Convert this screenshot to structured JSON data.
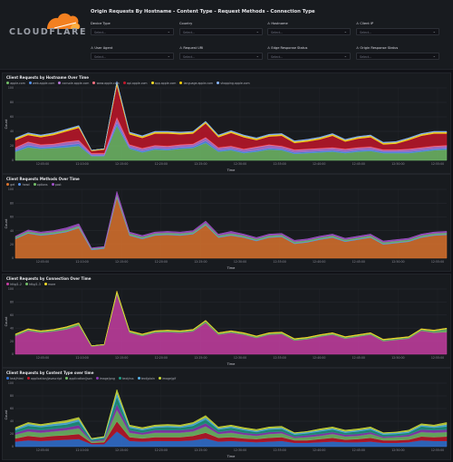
{
  "logo": {
    "text": "CLOUDFLARE",
    "cloud_color": "#f38020"
  },
  "filters": {
    "title": "Origin Requests By Hostname - Content Type - Request Methods - Connection Type",
    "items": [
      {
        "label": "Device Type",
        "placeholder": "Select...",
        "has_alert": false
      },
      {
        "label": "Country",
        "placeholder": "Select...",
        "has_alert": false
      },
      {
        "label": "Hostname",
        "placeholder": "Select...",
        "has_alert": true
      },
      {
        "label": "Client IP",
        "placeholder": "Select...",
        "has_alert": true
      },
      {
        "label": "User Agent",
        "placeholder": "Select...",
        "has_alert": true
      },
      {
        "label": "Request URI",
        "placeholder": "Select...",
        "has_alert": true
      },
      {
        "label": "Edge Response Status",
        "placeholder": "Select...",
        "has_alert": true
      },
      {
        "label": "Origin Response Status",
        "placeholder": "Select...",
        "has_alert": true
      }
    ]
  },
  "chart_data": [
    {
      "type": "area",
      "title": "Client Requests by Hostname Over Time",
      "xlabel": "Time",
      "ylabel": "Count",
      "ylim": [
        0,
        100
      ],
      "yticks": [
        0,
        20,
        40,
        60,
        80,
        100
      ],
      "xticks": [
        "12:05:00",
        "12:10:00",
        "12:15:00",
        "12:20:00",
        "12:25:00",
        "12:30:00",
        "12:35:00",
        "12:40:00",
        "12:45:00",
        "12:50:00",
        "12:55:00"
      ],
      "stacked": true,
      "legend_position": "top-left",
      "series": [
        {
          "name": "apple.com",
          "color": "#73bf69",
          "values": [
            12,
            18,
            16,
            17,
            18,
            20,
            6,
            6,
            48,
            16,
            11,
            15,
            14,
            16,
            17,
            24,
            12,
            14,
            10,
            12,
            15,
            14,
            9,
            10,
            11,
            12,
            10,
            12,
            13,
            10,
            10,
            10,
            12,
            14,
            15
          ]
        },
        {
          "name": "web.apple.com",
          "color": "#5794f2",
          "values": [
            2,
            3,
            2,
            2,
            3,
            3,
            1,
            1,
            4,
            2,
            2,
            2,
            2,
            2,
            2,
            3,
            2,
            2,
            2,
            2,
            2,
            2,
            2,
            2,
            2,
            2,
            2,
            2,
            2,
            2,
            2,
            2,
            2,
            2,
            2
          ]
        },
        {
          "name": "console.apple.com",
          "color": "#b877d9",
          "values": [
            3,
            4,
            3,
            3,
            4,
            4,
            2,
            2,
            6,
            3,
            3,
            3,
            3,
            3,
            3,
            4,
            3,
            3,
            3,
            4,
            4,
            3,
            3,
            3,
            3,
            3,
            3,
            3,
            3,
            2,
            2,
            3,
            3,
            3,
            3
          ]
        },
        {
          "name": "www.apple.com",
          "color": "#ff7383",
          "values": [
            1,
            1,
            1,
            1,
            1,
            1,
            1,
            1,
            2,
            1,
            1,
            1,
            1,
            1,
            1,
            1,
            1,
            1,
            1,
            1,
            1,
            1,
            1,
            1,
            1,
            1,
            1,
            1,
            1,
            1,
            1,
            1,
            1,
            1,
            1
          ]
        },
        {
          "name": "api.apple.com",
          "color": "#c4162a",
          "values": [
            10,
            9,
            10,
            12,
            14,
            17,
            3,
            5,
            44,
            14,
            14,
            16,
            17,
            14,
            14,
            19,
            14,
            18,
            16,
            9,
            11,
            14,
            9,
            10,
            12,
            16,
            10,
            12,
            13,
            7,
            8,
            12,
            16,
            17,
            16
          ]
        },
        {
          "name": "app.apple.com",
          "color": "#fade2a",
          "values": [
            1,
            1,
            1,
            1,
            1,
            1,
            1,
            1,
            2,
            1,
            1,
            1,
            1,
            1,
            1,
            1,
            1,
            1,
            1,
            1,
            1,
            1,
            1,
            1,
            1,
            1,
            1,
            1,
            1,
            1,
            1,
            1,
            1,
            1,
            1
          ]
        },
        {
          "name": "language.apple.com",
          "color": "#f2cc0c",
          "values": [
            1,
            1,
            1,
            1,
            1,
            1,
            0,
            0,
            2,
            1,
            1,
            1,
            1,
            1,
            1,
            1,
            1,
            1,
            1,
            1,
            1,
            1,
            1,
            1,
            1,
            1,
            1,
            1,
            1,
            1,
            1,
            1,
            1,
            1,
            1
          ]
        },
        {
          "name": "shopping.apple.com",
          "color": "#8ab8ff",
          "values": [
            1,
            1,
            1,
            1,
            1,
            1,
            0,
            0,
            1,
            1,
            1,
            1,
            1,
            1,
            1,
            1,
            1,
            1,
            1,
            1,
            1,
            1,
            1,
            1,
            1,
            1,
            1,
            1,
            1,
            1,
            1,
            1,
            1,
            1,
            1
          ]
        }
      ]
    },
    {
      "type": "area",
      "title": "Client Requests Methods Over Time",
      "xlabel": "Time",
      "ylabel": "Count",
      "ylim": [
        0,
        100
      ],
      "yticks": [
        0,
        20,
        40,
        60,
        80,
        100
      ],
      "xticks": [
        "12:05:00",
        "12:10:00",
        "12:15:00",
        "12:20:00",
        "12:25:00",
        "12:30:00",
        "12:35:00",
        "12:40:00",
        "12:45:00",
        "12:50:00",
        "12:55:00"
      ],
      "stacked": true,
      "legend_position": "top-left",
      "series": [
        {
          "name": "get",
          "color": "#e0752d",
          "values": [
            28,
            36,
            33,
            35,
            38,
            44,
            12,
            14,
            88,
            33,
            28,
            33,
            34,
            33,
            35,
            48,
            30,
            33,
            30,
            25,
            30,
            31,
            21,
            23,
            27,
            30,
            24,
            27,
            30,
            20,
            22,
            24,
            30,
            33,
            34
          ]
        },
        {
          "name": "head",
          "color": "#5794f2",
          "values": [
            1,
            1,
            1,
            1,
            1,
            1,
            1,
            1,
            1,
            1,
            1,
            1,
            1,
            1,
            1,
            1,
            1,
            1,
            1,
            1,
            1,
            1,
            1,
            1,
            1,
            1,
            1,
            1,
            1,
            1,
            1,
            1,
            1,
            1,
            1
          ]
        },
        {
          "name": "options",
          "color": "#73bf69",
          "values": [
            2,
            2,
            2,
            2,
            2,
            2,
            1,
            1,
            3,
            2,
            2,
            2,
            2,
            2,
            2,
            2,
            2,
            2,
            2,
            2,
            2,
            2,
            2,
            2,
            2,
            2,
            2,
            2,
            2,
            2,
            2,
            2,
            2,
            2,
            2
          ]
        },
        {
          "name": "post",
          "color": "#a352cc",
          "values": [
            1,
            2,
            2,
            2,
            3,
            3,
            1,
            1,
            5,
            2,
            2,
            2,
            2,
            2,
            2,
            3,
            2,
            3,
            2,
            2,
            2,
            2,
            2,
            2,
            2,
            2,
            2,
            2,
            2,
            2,
            2,
            2,
            2,
            2,
            2
          ]
        }
      ]
    },
    {
      "type": "area",
      "title": "Client Requests by Connection Over Time",
      "xlabel": "Time",
      "ylabel": "Count",
      "ylim": [
        0,
        100
      ],
      "yticks": [
        0,
        20,
        40,
        60,
        80,
        100
      ],
      "xticks": [
        "12:05:00",
        "12:10:00",
        "12:15:00",
        "12:20:00",
        "12:25:00",
        "12:30:00",
        "12:35:00",
        "12:40:00",
        "12:45:00",
        "12:50:00",
        "12:55:00"
      ],
      "stacked": true,
      "legend_position": "top-left",
      "series": [
        {
          "name": "http/1.2",
          "color": "#ca3fa6",
          "values": [
            28,
            36,
            33,
            35,
            38,
            44,
            12,
            14,
            92,
            33,
            28,
            33,
            34,
            33,
            35,
            48,
            30,
            33,
            30,
            25,
            30,
            31,
            21,
            23,
            27,
            30,
            24,
            27,
            30,
            20,
            22,
            24,
            36,
            33,
            34
          ]
        },
        {
          "name": "http/1.3",
          "color": "#73bf69",
          "values": [
            2,
            2,
            2,
            2,
            3,
            3,
            1,
            1,
            3,
            2,
            2,
            2,
            2,
            2,
            2,
            3,
            2,
            2,
            2,
            2,
            2,
            2,
            2,
            2,
            2,
            2,
            2,
            2,
            2,
            2,
            2,
            2,
            2,
            3,
            5
          ]
        },
        {
          "name": "more",
          "color": "#fade2a",
          "values": [
            1,
            1,
            1,
            1,
            1,
            1,
            0,
            0,
            2,
            1,
            1,
            1,
            1,
            1,
            1,
            1,
            1,
            1,
            1,
            1,
            1,
            1,
            1,
            1,
            1,
            1,
            1,
            1,
            1,
            1,
            1,
            1,
            1,
            1,
            1
          ]
        }
      ]
    },
    {
      "type": "area",
      "title": "Client Requests by Content Type over time",
      "xlabel": "Time",
      "ylabel": "Count",
      "ylim": [
        0,
        100
      ],
      "yticks": [
        0,
        20,
        40,
        60,
        80,
        100
      ],
      "xticks": [
        "12:05:00",
        "12:10:00",
        "12:15:00",
        "12:20:00",
        "12:25:00",
        "12:30:00",
        "12:35:00",
        "12:40:00",
        "12:45:00",
        "12:50:00",
        "12:55:00"
      ],
      "stacked": true,
      "legend_position": "top-left",
      "series": [
        {
          "name": "text/html",
          "color": "#3274d9",
          "values": [
            8,
            10,
            9,
            10,
            11,
            12,
            4,
            4,
            24,
            9,
            8,
            9,
            9,
            9,
            10,
            13,
            8,
            9,
            8,
            7,
            8,
            9,
            6,
            6,
            7,
            8,
            7,
            7,
            8,
            6,
            6,
            7,
            10,
            9,
            9
          ]
        },
        {
          "name": "application/javascript",
          "color": "#c4162a",
          "values": [
            5,
            7,
            6,
            7,
            7,
            8,
            2,
            3,
            16,
            6,
            5,
            6,
            6,
            6,
            7,
            9,
            6,
            6,
            5,
            5,
            6,
            6,
            4,
            4,
            5,
            6,
            4,
            5,
            6,
            4,
            4,
            4,
            6,
            6,
            7
          ]
        },
        {
          "name": "application/json",
          "color": "#73bf69",
          "values": [
            6,
            7,
            7,
            7,
            8,
            9,
            2,
            3,
            18,
            7,
            6,
            7,
            7,
            7,
            7,
            10,
            6,
            7,
            6,
            5,
            6,
            6,
            4,
            5,
            5,
            6,
            5,
            5,
            6,
            4,
            5,
            5,
            7,
            7,
            7
          ]
        },
        {
          "name": "image/png",
          "color": "#8f3bb8",
          "values": [
            3,
            4,
            4,
            4,
            4,
            5,
            1,
            2,
            9,
            4,
            3,
            4,
            4,
            4,
            4,
            5,
            3,
            4,
            3,
            3,
            3,
            3,
            2,
            3,
            3,
            3,
            3,
            3,
            3,
            2,
            2,
            3,
            4,
            4,
            4
          ]
        },
        {
          "name": "text/css",
          "color": "#1f9c84",
          "values": [
            4,
            5,
            5,
            5,
            5,
            6,
            2,
            2,
            12,
            4,
            4,
            4,
            5,
            4,
            5,
            6,
            4,
            4,
            4,
            3,
            4,
            4,
            3,
            3,
            4,
            4,
            3,
            4,
            4,
            3,
            3,
            3,
            5,
            4,
            5
          ]
        },
        {
          "name": "text/plain",
          "color": "#56b4e9",
          "values": [
            2,
            3,
            2,
            3,
            3,
            3,
            1,
            1,
            6,
            2,
            2,
            2,
            2,
            2,
            3,
            3,
            2,
            2,
            2,
            2,
            2,
            2,
            2,
            2,
            2,
            2,
            2,
            2,
            2,
            2,
            2,
            2,
            2,
            2,
            3
          ]
        },
        {
          "name": "image/gif",
          "color": "#cddc39",
          "values": [
            2,
            2,
            2,
            2,
            3,
            3,
            1,
            1,
            5,
            2,
            2,
            2,
            2,
            2,
            2,
            3,
            2,
            2,
            2,
            2,
            2,
            2,
            1,
            1,
            2,
            2,
            2,
            2,
            2,
            1,
            1,
            2,
            2,
            2,
            3
          ]
        }
      ]
    }
  ]
}
